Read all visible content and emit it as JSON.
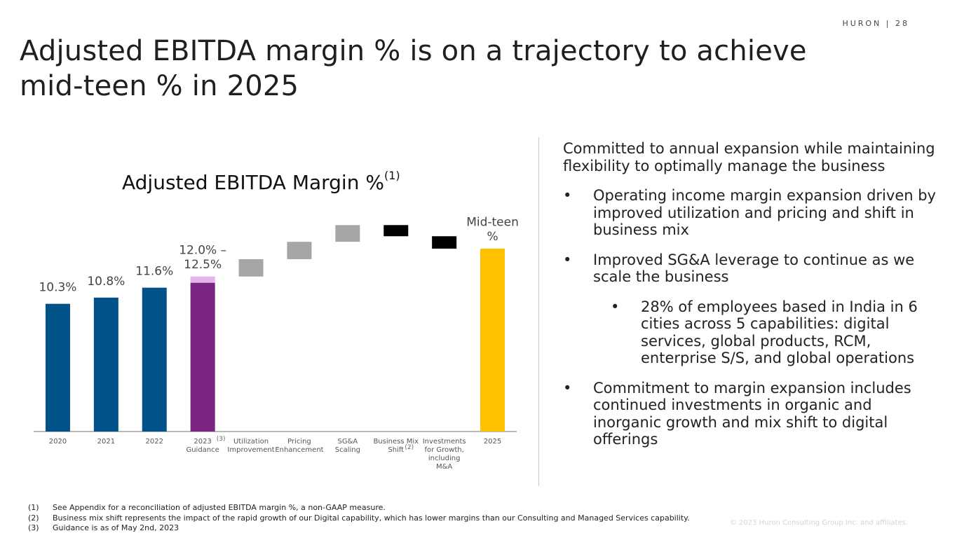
{
  "header": {
    "brand": "HURON | 28",
    "title": "Adjusted EBITDA margin % is on a trajectory to achieve mid-teen % in 2025"
  },
  "chart_title": {
    "text": "Adjusted EBITDA Margin %",
    "sup": "(1)"
  },
  "chart_data": {
    "type": "bar",
    "title": "Adjusted EBITDA Margin %(1)",
    "categories": [
      "2020",
      "2021",
      "2022",
      "2023 Guidance",
      "Utilization Improvement",
      "Pricing Enhancement",
      "SG&A Scaling",
      "Business Mix Shift",
      "Investments for Growth, including M&A",
      "2025"
    ],
    "category_lines": [
      [
        "2020"
      ],
      [
        "2021"
      ],
      [
        "2022"
      ],
      [
        "2023",
        "Guidance"
      ],
      [
        "Utilization",
        "Improvement"
      ],
      [
        "Pricing",
        "Enhancement"
      ],
      [
        "SG&A",
        "Scaling"
      ],
      [
        "Business Mix",
        "Shift"
      ],
      [
        "Investments",
        "for Growth,",
        "including",
        "M&A"
      ],
      [
        "2025"
      ]
    ],
    "category_footnotes": [
      "",
      "",
      "",
      "(3)",
      "",
      "",
      "",
      "(2)",
      "",
      ""
    ],
    "bars": [
      {
        "kind": "total",
        "value": 10.3,
        "label": "10.3%",
        "color": "#005288"
      },
      {
        "kind": "total",
        "value": 10.8,
        "label": "10.8%",
        "color": "#005288"
      },
      {
        "kind": "total",
        "value": 11.6,
        "label": "11.6%",
        "color": "#005288"
      },
      {
        "kind": "range",
        "low": 12.0,
        "high": 12.5,
        "label_lines": [
          "12.0% –",
          "12.5%"
        ],
        "color": "#7b2481",
        "range_color": "#e3b6ea"
      },
      {
        "kind": "increase",
        "start": 12.5,
        "end": 13.9,
        "color": "#a6a6a6"
      },
      {
        "kind": "increase",
        "start": 13.9,
        "end": 15.3,
        "color": "#a6a6a6"
      },
      {
        "kind": "increase",
        "start": 15.3,
        "end": 16.65,
        "color": "#a6a6a6"
      },
      {
        "kind": "decrease",
        "start": 16.65,
        "end": 15.75,
        "color": "#000000"
      },
      {
        "kind": "decrease",
        "start": 15.75,
        "end": 14.75,
        "color": "#000000"
      },
      {
        "kind": "total",
        "value": 14.75,
        "label_lines": [
          "Mid-teen",
          "%"
        ],
        "color": "#ffc000"
      }
    ]
  },
  "right_panel": {
    "intro": "Committed to annual expansion while maintaining flexibility to optimally manage the business",
    "bullets": [
      {
        "symbol": "•",
        "text": "Operating income margin expansion driven by improved utilization and pricing and shift in business mix",
        "level": 1
      },
      {
        "symbol": "•",
        "text": "Improved SG&A leverage to continue as we scale the business",
        "level": 1
      },
      {
        "symbol": "•",
        "text": "28% of employees based in India in 6 cities across 5 capabilities: digital services, global products, RCM, enterprise S/S, and global operations",
        "level": 2
      },
      {
        "symbol": "•",
        "text": "Commitment to margin expansion includes continued investments in organic and inorganic growth and mix shift to digital offerings",
        "level": 1
      }
    ]
  },
  "footnotes": [
    {
      "mark": "(1)",
      "text": "See Appendix for a reconciliation of adjusted EBITDA margin %, a non-GAAP measure."
    },
    {
      "mark": "(2)",
      "text": "Business mix shift represents the impact of the rapid growth of our Digital capability, which has lower margins than our Consulting and Managed Services capability."
    },
    {
      "mark": "(3)",
      "text": "Guidance is as of May 2nd, 2023"
    }
  ],
  "copyright": "© 2023 Huron Consulting Group Inc. and affiliates."
}
